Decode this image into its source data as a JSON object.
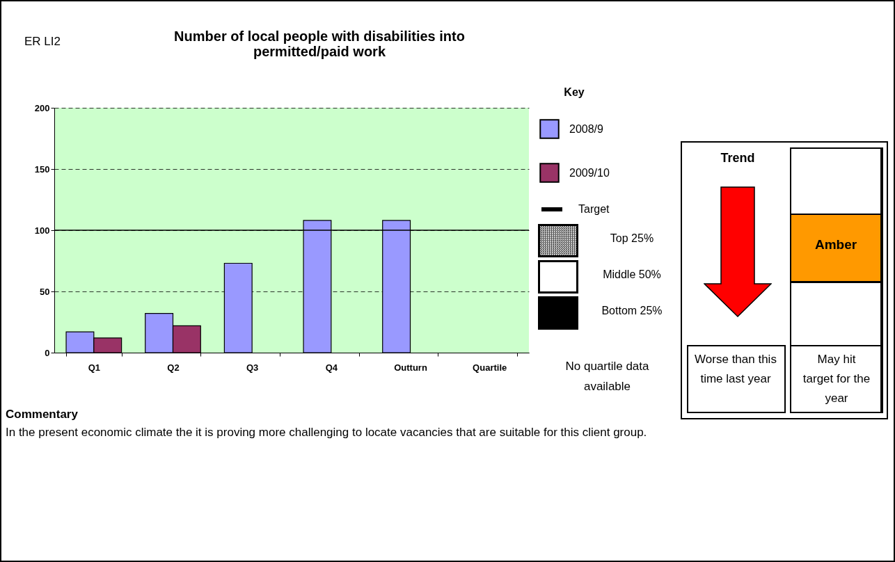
{
  "chart_data": {
    "type": "bar",
    "title": "Number of local people with disabilities into permitted/paid work",
    "categories": [
      "Q1",
      "Q2",
      "Q3",
      "Q4",
      "Outturn",
      "Quartile"
    ],
    "series": [
      {
        "name": "2008/9",
        "color": "#9999ff",
        "values": [
          17,
          32,
          73,
          108,
          108,
          null
        ]
      },
      {
        "name": "2009/10",
        "color": "#993366",
        "values": [
          12,
          22,
          null,
          null,
          null,
          null
        ]
      }
    ],
    "ylim": [
      0,
      200
    ],
    "yticks": [
      0,
      50,
      100,
      150,
      200
    ],
    "grid": "y",
    "legend": "right",
    "legend_title": "Key",
    "ref_lines": [
      {
        "axis": "y",
        "value": 100,
        "label": "Target",
        "color": "#000000"
      }
    ],
    "annotations": [
      "ER LI2",
      "Top 25%",
      "Middle 50%",
      "Bottom 25%",
      "No quartile data available",
      "Trend",
      "Amber",
      "Worse than this time last year",
      "May hit target for the year",
      "Commentary",
      "In the present economic climate the it is proving more challenging to locate vacancies that are suitable for this client group."
    ]
  }
}
